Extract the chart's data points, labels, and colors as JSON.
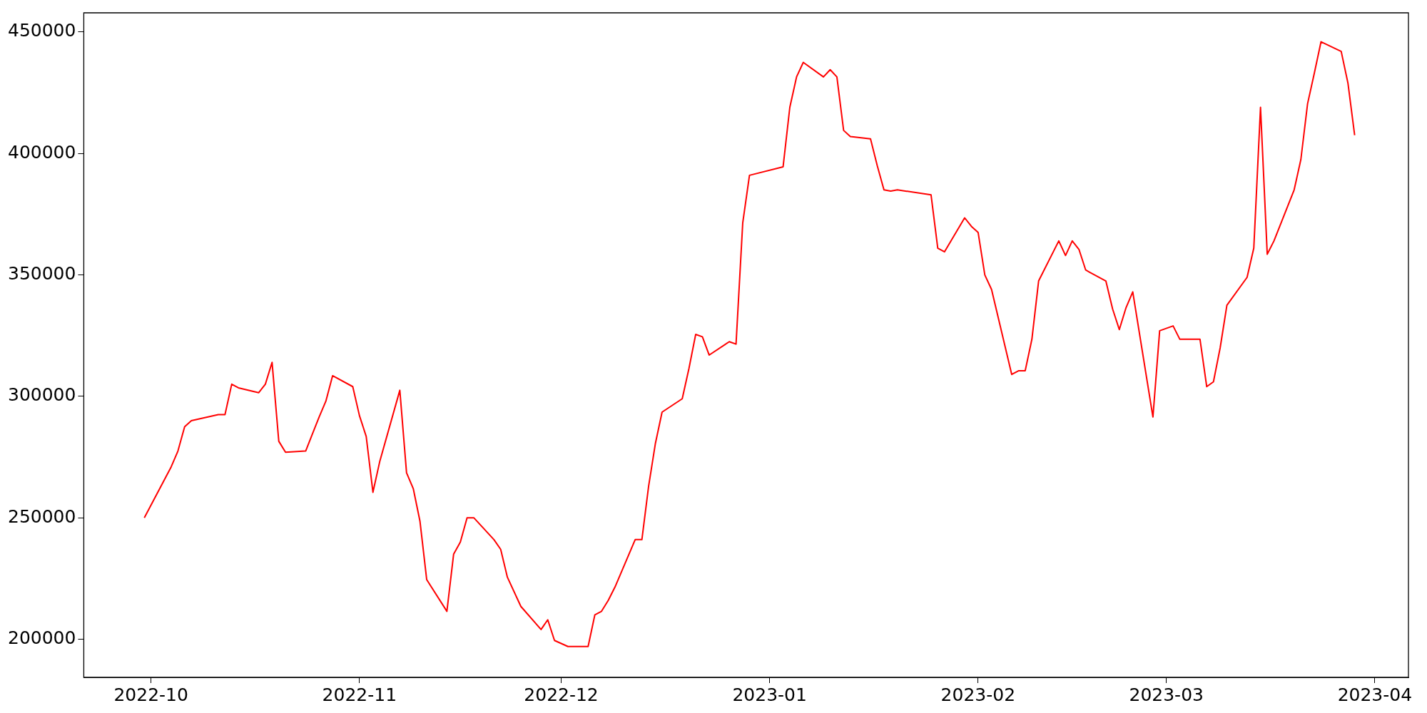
{
  "chart_data": {
    "type": "line",
    "color": "#ff0000",
    "marker": "none",
    "grid": false,
    "legend": false,
    "x": [
      "2022-09-30",
      "2022-10-04",
      "2022-10-05",
      "2022-10-06",
      "2022-10-07",
      "2022-10-11",
      "2022-10-12",
      "2022-10-13",
      "2022-10-14",
      "2022-10-17",
      "2022-10-18",
      "2022-10-19",
      "2022-10-20",
      "2022-10-21",
      "2022-10-24",
      "2022-10-25",
      "2022-10-26",
      "2022-10-27",
      "2022-10-28",
      "2022-10-31",
      "2022-11-01",
      "2022-11-02",
      "2022-11-03",
      "2022-11-04",
      "2022-11-07",
      "2022-11-08",
      "2022-11-09",
      "2022-11-10",
      "2022-11-11",
      "2022-11-14",
      "2022-11-15",
      "2022-11-16",
      "2022-11-17",
      "2022-11-18",
      "2022-11-21",
      "2022-11-22",
      "2022-11-23",
      "2022-11-25",
      "2022-11-28",
      "2022-11-29",
      "2022-11-30",
      "2022-12-02",
      "2022-12-05",
      "2022-12-06",
      "2022-12-07",
      "2022-12-08",
      "2022-12-09",
      "2022-12-12",
      "2022-12-13",
      "2022-12-14",
      "2022-12-15",
      "2022-12-16",
      "2022-12-19",
      "2022-12-20",
      "2022-12-21",
      "2022-12-22",
      "2022-12-23",
      "2022-12-26",
      "2022-12-27",
      "2022-12-28",
      "2022-12-29",
      "2023-01-03",
      "2023-01-04",
      "2023-01-05",
      "2023-01-06",
      "2023-01-09",
      "2023-01-10",
      "2023-01-11",
      "2023-01-12",
      "2023-01-13",
      "2023-01-16",
      "2023-01-17",
      "2023-01-18",
      "2023-01-19",
      "2023-01-20",
      "2023-01-25",
      "2023-01-26",
      "2023-01-27",
      "2023-01-30",
      "2023-01-31",
      "2023-02-01",
      "2023-02-02",
      "2023-02-03",
      "2023-02-06",
      "2023-02-07",
      "2023-02-08",
      "2023-02-09",
      "2023-02-10",
      "2023-02-13",
      "2023-02-14",
      "2023-02-15",
      "2023-02-16",
      "2023-02-17",
      "2023-02-20",
      "2023-02-21",
      "2023-02-22",
      "2023-02-23",
      "2023-02-24",
      "2023-02-27",
      "2023-02-28",
      "2023-03-02",
      "2023-03-03",
      "2023-03-06",
      "2023-03-07",
      "2023-03-08",
      "2023-03-09",
      "2023-03-10",
      "2023-03-13",
      "2023-03-14",
      "2023-03-15",
      "2023-03-16",
      "2023-03-17",
      "2023-03-20",
      "2023-03-21",
      "2023-03-22",
      "2023-03-23",
      "2023-03-24",
      "2023-03-27",
      "2023-03-28",
      "2023-03-29"
    ],
    "values": [
      250000,
      271000,
      277500,
      287500,
      290000,
      292500,
      292500,
      305000,
      303500,
      301500,
      305000,
      314000,
      281500,
      277000,
      277500,
      284500,
      291500,
      298000,
      308500,
      304000,
      292000,
      283500,
      260500,
      273000,
      302500,
      268500,
      262000,
      248500,
      224500,
      211500,
      235000,
      240000,
      250000,
      250000,
      241000,
      237000,
      225500,
      213500,
      204000,
      208000,
      199500,
      197000,
      197000,
      210000,
      211500,
      216000,
      221500,
      241000,
      241000,
      263000,
      280500,
      293500,
      299000,
      311500,
      325500,
      324500,
      317000,
      322500,
      321500,
      371500,
      391000,
      394500,
      419000,
      431500,
      437500,
      431500,
      434500,
      431500,
      409500,
      407000,
      406000,
      395000,
      385000,
      384500,
      385000,
      383000,
      361000,
      359500,
      373500,
      370000,
      367500,
      350000,
      344000,
      309000,
      310500,
      310500,
      323500,
      347500,
      364000,
      358000,
      364000,
      360500,
      352000,
      347500,
      336000,
      327500,
      336500,
      343000,
      291500,
      327000,
      329000,
      323500,
      323500,
      304000,
      306000,
      320000,
      337500,
      349000,
      361000,
      419000,
      358500,
      364000,
      385000,
      397500,
      420500,
      433000,
      446000,
      442000,
      429000,
      407500
    ],
    "xlim": [
      "2022-09-21",
      "2023-04-06"
    ],
    "xticks": [
      "2022-10",
      "2022-11",
      "2022-12",
      "2023-01",
      "2023-02",
      "2023-03",
      "2023-04"
    ],
    "ylim": [
      184300,
      457900
    ],
    "yticks": [
      200000,
      250000,
      300000,
      350000,
      400000,
      450000
    ]
  }
}
